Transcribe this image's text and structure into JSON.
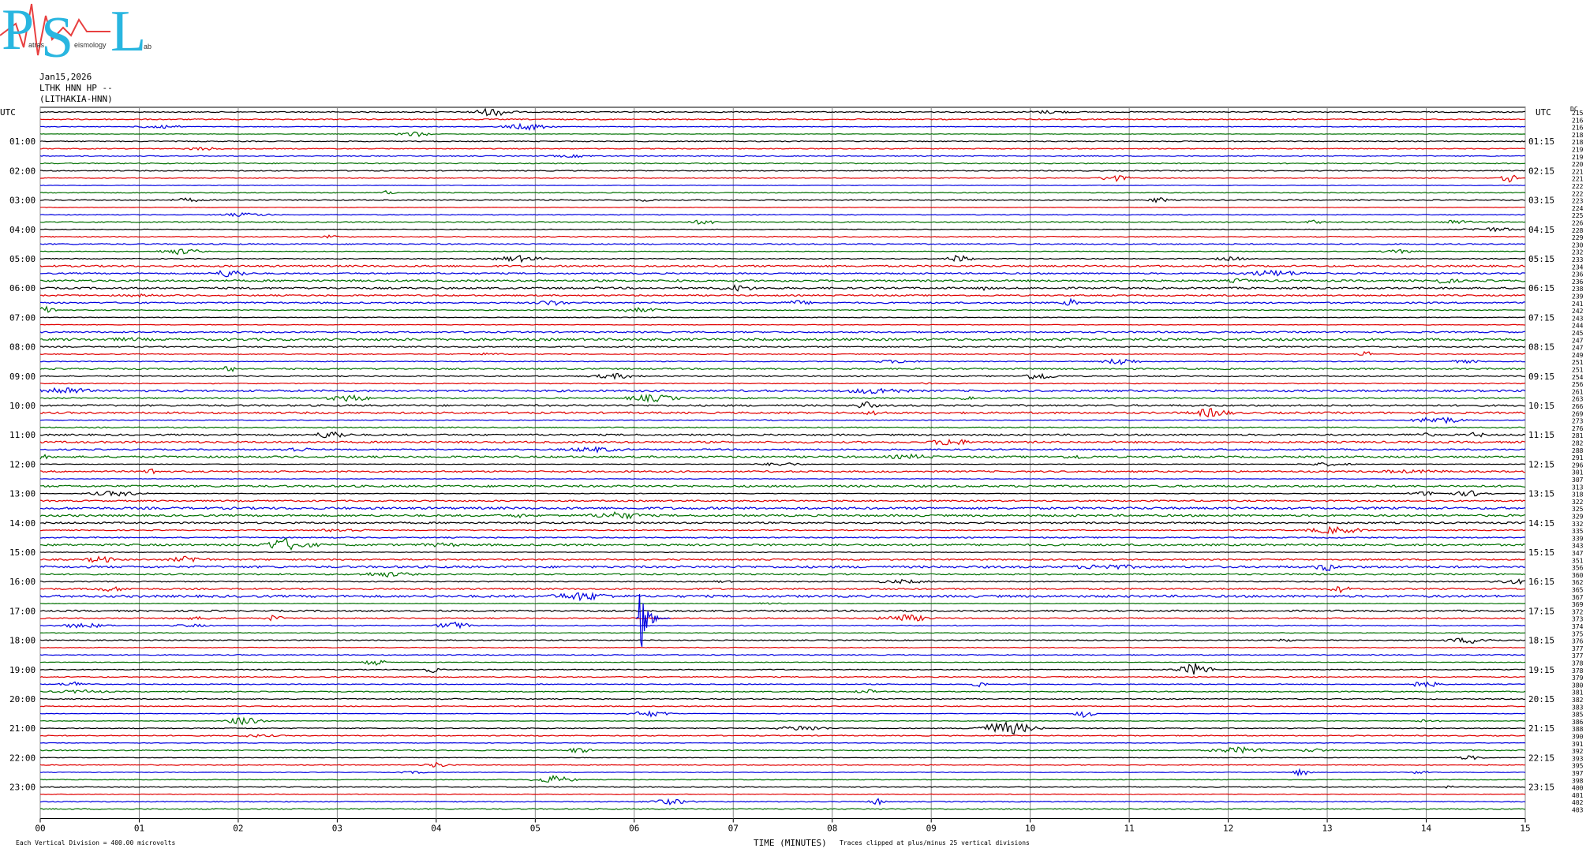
{
  "logo": {
    "letters": [
      "P",
      "S",
      "L"
    ],
    "words": [
      "atras",
      "eismology",
      "ab"
    ]
  },
  "header": [
    "Jan15,2026",
    "LTHK HNN HP --",
    "(LITHAKIA-HNN)"
  ],
  "left_labels": [
    "UTC",
    "01:00",
    "02:00",
    "03:00",
    "04:00",
    "05:00",
    "06:00",
    "07:00",
    "08:00",
    "09:00",
    "10:00",
    "11:00",
    "12:00",
    "13:00",
    "14:00",
    "15:00",
    "16:00",
    "17:00",
    "18:00",
    "19:00",
    "20:00",
    "21:00",
    "22:00",
    "23:00"
  ],
  "right_labels": [
    "UTC",
    "01:15",
    "02:15",
    "03:15",
    "04:15",
    "05:15",
    "06:15",
    "07:15",
    "08:15",
    "09:15",
    "10:15",
    "11:15",
    "12:15",
    "13:15",
    "14:15",
    "15:15",
    "16:15",
    "17:15",
    "18:15",
    "19:15",
    "20:15",
    "21:15",
    "22:15",
    "23:15"
  ],
  "dc_label": "DC",
  "row_numbers": [
    "215",
    "216",
    "216",
    "218",
    "218",
    "219",
    "219",
    "220",
    "221",
    "221",
    "222",
    "222",
    "223",
    "224",
    "225",
    "226",
    "228",
    "229",
    "230",
    "232",
    "233",
    "234",
    "236",
    "236",
    "238",
    "239",
    "241",
    "242",
    "243",
    "244",
    "245",
    "247",
    "247",
    "249",
    "251",
    "251",
    "254",
    "256",
    "261",
    "263",
    "266",
    "269",
    "273",
    "276",
    "281",
    "282",
    "288",
    "291",
    "296",
    "301",
    "307",
    "313",
    "318",
    "322",
    "325",
    "329",
    "332",
    "335",
    "339",
    "343",
    "347",
    "351",
    "356",
    "360",
    "362",
    "365",
    "367",
    "369",
    "372",
    "373",
    "374",
    "375",
    "376",
    "377",
    "377",
    "378",
    "378",
    "379",
    "380",
    "381",
    "382",
    "383",
    "385",
    "386",
    "388",
    "390",
    "391",
    "392",
    "393",
    "395",
    "397",
    "398",
    "400",
    "401",
    "402",
    "403"
  ],
  "x_labels": [
    "00",
    "01",
    "02",
    "03",
    "04",
    "05",
    "06",
    "07",
    "08",
    "09",
    "10",
    "11",
    "12",
    "13",
    "14",
    "15"
  ],
  "x_title": "TIME (MINUTES)",
  "footer_left": "Each Vertical Division =  400.00 microvolts",
  "footer_right": "Traces clipped at plus/minus 25 vertical divisions"
}
